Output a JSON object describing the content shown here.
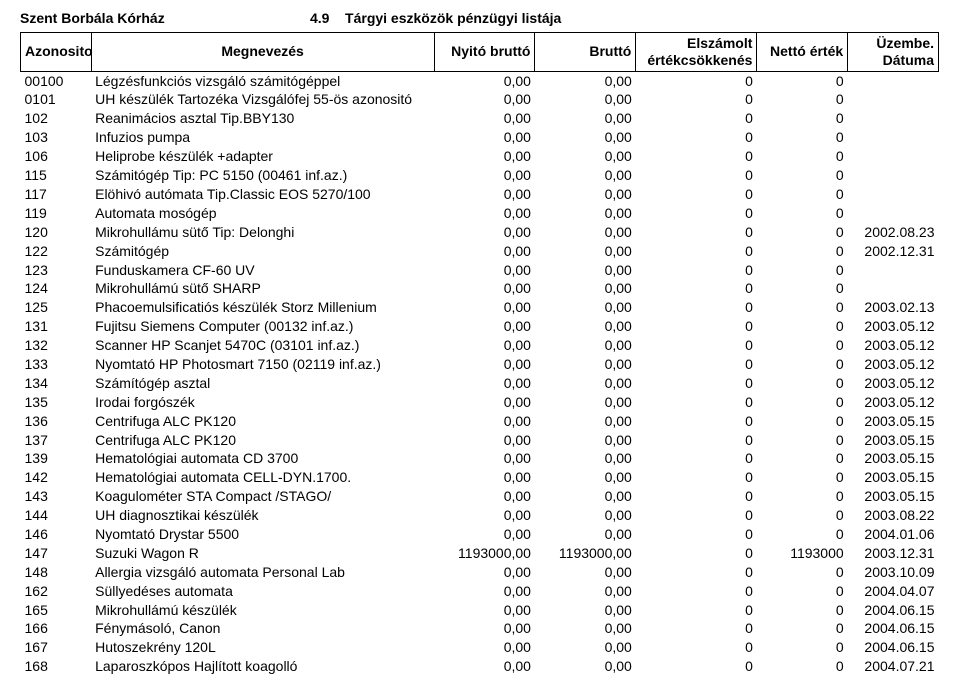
{
  "header": {
    "hospital": "Szent Borbála Kórház",
    "list_no": "4.9",
    "list_title": "Tárgyi eszközök pénzügyi listája"
  },
  "columns": {
    "id": "Azonosito",
    "name": "Megnevezés",
    "nyito": "Nyitó bruttó",
    "brutto": "Bruttó",
    "elsz": "Elszámolt értékcsökkenés",
    "netto": "Nettó érték",
    "date": "Üzembe. Dátuma"
  },
  "rows": [
    {
      "id": "00100",
      "name": "Légzésfunkciós vizsgáló számitógéppel",
      "nyito": "0,00",
      "brutto": "0,00",
      "elsz": "0",
      "netto": "0",
      "date": ""
    },
    {
      "id": "0101",
      "name": "UH készülék Tartozéka Vizsgálófej  55-ös azonositó",
      "nyito": "0,00",
      "brutto": "0,00",
      "elsz": "0",
      "netto": "0",
      "date": ""
    },
    {
      "id": "102",
      "name": "Reanimácios asztal Tip.BBY130",
      "nyito": "0,00",
      "brutto": "0,00",
      "elsz": "0",
      "netto": "0",
      "date": ""
    },
    {
      "id": "103",
      "name": "Infuzios pumpa",
      "nyito": "0,00",
      "brutto": "0,00",
      "elsz": "0",
      "netto": "0",
      "date": ""
    },
    {
      "id": "106",
      "name": "Heliprobe készülék +adapter",
      "nyito": "0,00",
      "brutto": "0,00",
      "elsz": "0",
      "netto": "0",
      "date": ""
    },
    {
      "id": "115",
      "name": "Számitógép Tip: PC 5150 (00461 inf.az.)",
      "nyito": "0,00",
      "brutto": "0,00",
      "elsz": "0",
      "netto": "0",
      "date": ""
    },
    {
      "id": "117",
      "name": "Elöhivó autómata Tip.Classic EOS 5270/100",
      "nyito": "0,00",
      "brutto": "0,00",
      "elsz": "0",
      "netto": "0",
      "date": ""
    },
    {
      "id": "119",
      "name": "Automata mosógép",
      "nyito": "0,00",
      "brutto": "0,00",
      "elsz": "0",
      "netto": "0",
      "date": ""
    },
    {
      "id": "120",
      "name": "Mikrohullámu sütő Tip: Delonghi",
      "nyito": "0,00",
      "brutto": "0,00",
      "elsz": "0",
      "netto": "0",
      "date": "2002.08.23"
    },
    {
      "id": "122",
      "name": "Számitógép",
      "nyito": "0,00",
      "brutto": "0,00",
      "elsz": "0",
      "netto": "0",
      "date": "2002.12.31"
    },
    {
      "id": "123",
      "name": "Funduskamera CF-60 UV",
      "nyito": "0,00",
      "brutto": "0,00",
      "elsz": "0",
      "netto": "0",
      "date": ""
    },
    {
      "id": "124",
      "name": "Mikrohullámú sütő SHARP",
      "nyito": "0,00",
      "brutto": "0,00",
      "elsz": "0",
      "netto": "0",
      "date": ""
    },
    {
      "id": "125",
      "name": "Phacoemulsificatiós készülék Storz Millenium",
      "nyito": "0,00",
      "brutto": "0,00",
      "elsz": "0",
      "netto": "0",
      "date": "2003.02.13"
    },
    {
      "id": "131",
      "name": "Fujitsu Siemens Computer (00132 inf.az.)",
      "nyito": "0,00",
      "brutto": "0,00",
      "elsz": "0",
      "netto": "0",
      "date": "2003.05.12"
    },
    {
      "id": "132",
      "name": "Scanner HP Scanjet 5470C (03101 inf.az.)",
      "nyito": "0,00",
      "brutto": "0,00",
      "elsz": "0",
      "netto": "0",
      "date": "2003.05.12"
    },
    {
      "id": "133",
      "name": "Nyomtató HP Photosmart 7150 (02119 inf.az.)",
      "nyito": "0,00",
      "brutto": "0,00",
      "elsz": "0",
      "netto": "0",
      "date": "2003.05.12"
    },
    {
      "id": "134",
      "name": "Számítógép asztal",
      "nyito": "0,00",
      "brutto": "0,00",
      "elsz": "0",
      "netto": "0",
      "date": "2003.05.12"
    },
    {
      "id": "135",
      "name": "Irodai forgószék",
      "nyito": "0,00",
      "brutto": "0,00",
      "elsz": "0",
      "netto": "0",
      "date": "2003.05.12"
    },
    {
      "id": "136",
      "name": "Centrifuga ALC PK120",
      "nyito": "0,00",
      "brutto": "0,00",
      "elsz": "0",
      "netto": "0",
      "date": "2003.05.15"
    },
    {
      "id": "137",
      "name": "Centrifuga ALC PK120",
      "nyito": "0,00",
      "brutto": "0,00",
      "elsz": "0",
      "netto": "0",
      "date": "2003.05.15"
    },
    {
      "id": "139",
      "name": "Hematológiai automata CD 3700",
      "nyito": "0,00",
      "brutto": "0,00",
      "elsz": "0",
      "netto": "0",
      "date": "2003.05.15"
    },
    {
      "id": "142",
      "name": "Hematológiai automata CELL-DYN.1700.",
      "nyito": "0,00",
      "brutto": "0,00",
      "elsz": "0",
      "netto": "0",
      "date": "2003.05.15"
    },
    {
      "id": "143",
      "name": "Koagulométer STA Compact /STAGO/",
      "nyito": "0,00",
      "brutto": "0,00",
      "elsz": "0",
      "netto": "0",
      "date": "2003.05.15"
    },
    {
      "id": "144",
      "name": "UH diagnosztikai készülék",
      "nyito": "0,00",
      "brutto": "0,00",
      "elsz": "0",
      "netto": "0",
      "date": "2003.08.22"
    },
    {
      "id": "146",
      "name": "Nyomtató Drystar 5500",
      "nyito": "0,00",
      "brutto": "0,00",
      "elsz": "0",
      "netto": "0",
      "date": "2004.01.06"
    },
    {
      "id": "147",
      "name": "Suzuki Wagon R",
      "nyito": "1193000,00",
      "brutto": "1193000,00",
      "elsz": "0",
      "netto": "1193000",
      "date": "2003.12.31"
    },
    {
      "id": "148",
      "name": "Allergia vizsgáló automata Personal Lab",
      "nyito": "0,00",
      "brutto": "0,00",
      "elsz": "0",
      "netto": "0",
      "date": "2003.10.09"
    },
    {
      "id": "162",
      "name": "Süllyedéses automata",
      "nyito": "0,00",
      "brutto": "0,00",
      "elsz": "0",
      "netto": "0",
      "date": "2004.04.07"
    },
    {
      "id": "165",
      "name": "Mikrohullámú készülék",
      "nyito": "0,00",
      "brutto": "0,00",
      "elsz": "0",
      "netto": "0",
      "date": "2004.06.15"
    },
    {
      "id": "166",
      "name": "Fénymásoló, Canon",
      "nyito": "0,00",
      "brutto": "0,00",
      "elsz": "0",
      "netto": "0",
      "date": "2004.06.15"
    },
    {
      "id": "167",
      "name": "Hutoszekrény 120L",
      "nyito": "0,00",
      "brutto": "0,00",
      "elsz": "0",
      "netto": "0",
      "date": "2004.06.15"
    },
    {
      "id": "168",
      "name": "Laparoszkópos Hajlított koagolló",
      "nyito": "0,00",
      "brutto": "0,00",
      "elsz": "0",
      "netto": "0",
      "date": "2004.07.21"
    }
  ]
}
